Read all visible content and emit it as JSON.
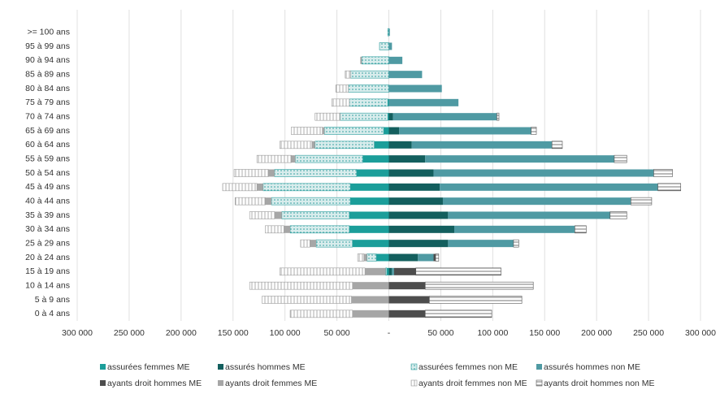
{
  "chart_data": {
    "type": "bar",
    "orientation": "horizontal",
    "stacked": true,
    "categories": [
      ">= 100 ans",
      "95 à 99 ans",
      "90 à 94 ans",
      "85 à 89 ans",
      "80 à 84 ans",
      "75 à 79 ans",
      "70 à 74 ans",
      "65 à 69 ans",
      "60 à 64 ans",
      "55 à 59 ans",
      "50 à 54 ans",
      "45 à 49 ans",
      "40 à 44 ans",
      "35 à 39 ans",
      "30 à 34 ans",
      "25 à 29 ans",
      "20 à 24 ans",
      "15 à 19 ans",
      "10 à 14 ans",
      "5 à 9 ans",
      "0 à 4 ans"
    ],
    "series": [
      {
        "name": "assurées femmes ME",
        "color": "#1b9e9a",
        "values": [
          0,
          0,
          0,
          0,
          0,
          -1000,
          -1000,
          -5000,
          -14000,
          -25000,
          -31000,
          -37000,
          -37000,
          -38000,
          -38000,
          -35000,
          -12000,
          -2000,
          0,
          0,
          0
        ]
      },
      {
        "name": "assurés hommes ME",
        "color": "#135f5e",
        "values": [
          0,
          0,
          0,
          0,
          0,
          0,
          4000,
          10000,
          22000,
          35000,
          43000,
          49000,
          52000,
          57000,
          63000,
          57000,
          28000,
          3000,
          0,
          0,
          0
        ]
      },
      {
        "name": "assurées femmes non ME",
        "color": "#2a9d9d",
        "hatch": "dots",
        "values": [
          -1000,
          -9000,
          -26000,
          -37000,
          -39000,
          -37000,
          -46000,
          -57000,
          -57000,
          -65000,
          -79000,
          -84000,
          -76000,
          -65000,
          -57000,
          -35000,
          -9000,
          -1000,
          0,
          0,
          0
        ]
      },
      {
        "name": "assurés hommes non ME",
        "color": "#4f9aa3",
        "values": [
          1000,
          3000,
          13000,
          32000,
          51000,
          67000,
          100000,
          127000,
          135000,
          182000,
          212000,
          210000,
          181000,
          156000,
          116000,
          63000,
          15000,
          2000,
          0,
          0,
          0
        ]
      },
      {
        "name": "ayants droit hommes ME",
        "color": "#4d4d4d",
        "values": [
          0,
          0,
          0,
          0,
          0,
          0,
          0,
          0,
          0,
          0,
          0,
          0,
          0,
          0,
          0,
          0,
          2000,
          21000,
          35000,
          39000,
          35000
        ]
      },
      {
        "name": "ayants droit femmes ME",
        "color": "#a6a6a6",
        "values": [
          0,
          0,
          -1500,
          0,
          0,
          0,
          0,
          -2000,
          -3000,
          -4000,
          -6000,
          -6000,
          -6000,
          -7000,
          -6000,
          -6000,
          -3000,
          -20000,
          -35000,
          -36000,
          -35000
        ]
      },
      {
        "name": "ayants droit femmes non  ME",
        "color": "#9a9a9a",
        "hatch": "vertical",
        "values": [
          0,
          0,
          0,
          -5000,
          -12000,
          -17000,
          -24000,
          -30000,
          -31000,
          -33000,
          -33000,
          -33000,
          -29000,
          -24000,
          -18000,
          -9000,
          -6000,
          -82000,
          -99000,
          -86000,
          -60000
        ]
      },
      {
        "name": "ayants droit hommes non ME",
        "color": "#555555",
        "hatch": "horizontal",
        "values": [
          0,
          0,
          0,
          0,
          0,
          0,
          2000,
          5000,
          10000,
          12000,
          18000,
          22000,
          20000,
          16000,
          11000,
          5000,
          3000,
          82000,
          104000,
          89000,
          64000
        ]
      }
    ],
    "xlim": [
      -300000,
      300000
    ],
    "xticks": [
      {
        "value": -300000,
        "label": "300 000"
      },
      {
        "value": -250000,
        "label": "250 000"
      },
      {
        "value": -200000,
        "label": "200 000"
      },
      {
        "value": -150000,
        "label": "150 000"
      },
      {
        "value": -100000,
        "label": "100 000"
      },
      {
        "value": -50000,
        "label": "50 000"
      },
      {
        "value": 0,
        "label": "-"
      },
      {
        "value": 50000,
        "label": "50 000"
      },
      {
        "value": 100000,
        "label": "100 000"
      },
      {
        "value": 150000,
        "label": "150 000"
      },
      {
        "value": 200000,
        "label": "200 000"
      },
      {
        "value": 250000,
        "label": "250 000"
      },
      {
        "value": 300000,
        "label": "300 000"
      }
    ],
    "grid": true,
    "legend": "bottom"
  }
}
